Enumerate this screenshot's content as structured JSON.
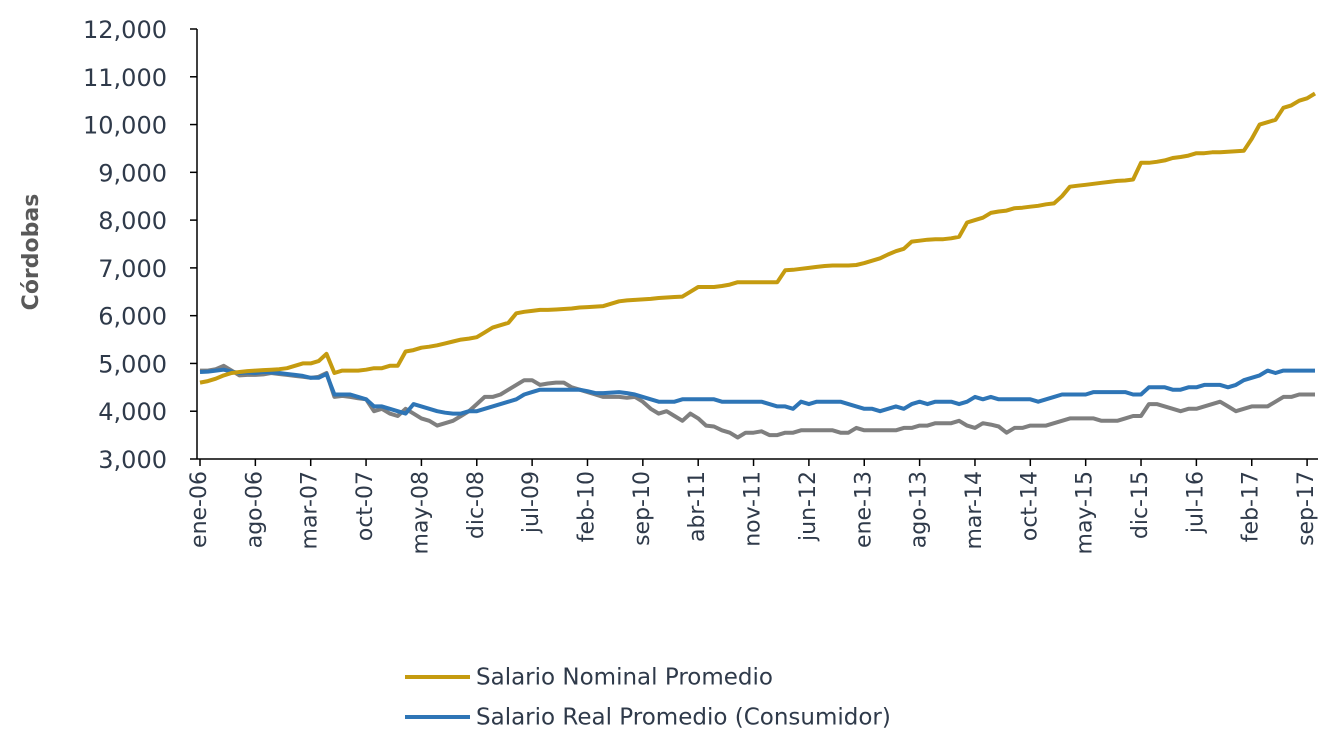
{
  "chart_data": {
    "type": "line",
    "y_label": "Córdobas",
    "categories": [
      "ene-06",
      null,
      null,
      null,
      null,
      null,
      null,
      "ago-06",
      null,
      null,
      null,
      null,
      null,
      null,
      "mar-07",
      null,
      null,
      null,
      null,
      null,
      null,
      "oct-07",
      null,
      null,
      null,
      null,
      null,
      null,
      "may-08",
      null,
      null,
      null,
      null,
      null,
      null,
      "dic-08",
      null,
      null,
      null,
      null,
      null,
      null,
      "jul-09",
      null,
      null,
      null,
      null,
      null,
      null,
      "feb-10",
      null,
      null,
      null,
      null,
      null,
      null,
      "sep-10",
      null,
      null,
      null,
      null,
      null,
      null,
      "abr-11",
      null,
      null,
      null,
      null,
      null,
      null,
      "nov-11",
      null,
      null,
      null,
      null,
      null,
      null,
      "jun-12",
      null,
      null,
      null,
      null,
      null,
      null,
      "ene-13",
      null,
      null,
      null,
      null,
      null,
      null,
      "ago-13",
      null,
      null,
      null,
      null,
      null,
      null,
      "mar-14",
      null,
      null,
      null,
      null,
      null,
      null,
      "oct-14",
      null,
      null,
      null,
      null,
      null,
      null,
      "may-15",
      null,
      null,
      null,
      null,
      null,
      null,
      "dic-15",
      null,
      null,
      null,
      null,
      null,
      null,
      "jul-16",
      null,
      null,
      null,
      null,
      null,
      null,
      "feb-17",
      null,
      null,
      null,
      null,
      null,
      null,
      "sep-17",
      null
    ],
    "series": [
      {
        "name": "Salario Nominal Promedio",
        "color": "#c59b10",
        "values": [
          4600,
          4630,
          4680,
          4750,
          4800,
          4820,
          4840,
          4850,
          4860,
          4870,
          4880,
          4900,
          4950,
          5000,
          5000,
          5050,
          5200,
          4800,
          4850,
          4850,
          4850,
          4870,
          4900,
          4900,
          4950,
          4950,
          5250,
          5280,
          5330,
          5350,
          5380,
          5420,
          5460,
          5500,
          5520,
          5550,
          5650,
          5750,
          5800,
          5850,
          6050,
          6080,
          6100,
          6120,
          6120,
          6130,
          6140,
          6150,
          6170,
          6180,
          6190,
          6200,
          6250,
          6300,
          6320,
          6330,
          6340,
          6350,
          6370,
          6380,
          6390,
          6400,
          6500,
          6600,
          6600,
          6600,
          6620,
          6650,
          6700,
          6700,
          6700,
          6700,
          6700,
          6700,
          6950,
          6960,
          6980,
          7000,
          7020,
          7040,
          7050,
          7050,
          7050,
          7060,
          7100,
          7150,
          7200,
          7280,
          7350,
          7400,
          7550,
          7570,
          7590,
          7600,
          7600,
          7620,
          7650,
          7950,
          8000,
          8050,
          8150,
          8180,
          8200,
          8250,
          8260,
          8280,
          8300,
          8330,
          8350,
          8500,
          8700,
          8720,
          8740,
          8760,
          8780,
          8800,
          8820,
          8830,
          8850,
          9200,
          9200,
          9220,
          9250,
          9300,
          9320,
          9350,
          9400,
          9400,
          9420,
          9420,
          9430,
          9440,
          9450,
          9700,
          10000,
          10050,
          10100,
          10350,
          10400,
          10500,
          10550,
          10650
        ]
      },
      {
        "name": "Salario Real Promedio (Consumidor)",
        "color": "#2e75b6",
        "values": [
          4820,
          4830,
          4850,
          4870,
          4830,
          4800,
          4810,
          4800,
          4820,
          4810,
          4800,
          4780,
          4760,
          4740,
          4700,
          4700,
          4780,
          4350,
          4350,
          4350,
          4300,
          4250,
          4100,
          4100,
          4050,
          4000,
          3950,
          4150,
          4100,
          4050,
          4000,
          3970,
          3950,
          3950,
          4000,
          4000,
          4050,
          4100,
          4150,
          4200,
          4250,
          4350,
          4400,
          4450,
          4450,
          4450,
          4450,
          4450,
          4450,
          4420,
          4380,
          4380,
          4390,
          4400,
          4380,
          4350,
          4300,
          4250,
          4200,
          4200,
          4200,
          4250,
          4250,
          4250,
          4250,
          4250,
          4200,
          4200,
          4200,
          4200,
          4200,
          4200,
          4150,
          4100,
          4100,
          4050,
          4200,
          4150,
          4200,
          4200,
          4200,
          4200,
          4150,
          4100,
          4050,
          4050,
          4000,
          4050,
          4100,
          4050,
          4150,
          4200,
          4150,
          4200,
          4200,
          4200,
          4150,
          4200,
          4300,
          4250,
          4300,
          4250,
          4250,
          4250,
          4250,
          4250,
          4200,
          4250,
          4300,
          4350,
          4350,
          4350,
          4350,
          4400,
          4400,
          4400,
          4400,
          4400,
          4350,
          4350,
          4500,
          4500,
          4500,
          4450,
          4450,
          4500,
          4500,
          4550,
          4550,
          4550,
          4500,
          4550,
          4650,
          4700,
          4750,
          4850,
          4800,
          4850,
          4850,
          4850,
          4850,
          4850
        ]
      },
      {
        "color": "#7f7f7f",
        "values": [
          4850,
          4850,
          4880,
          4950,
          4850,
          4750,
          4760,
          4760,
          4770,
          4800,
          4780,
          4760,
          4740,
          4720,
          4700,
          4720,
          4800,
          4300,
          4320,
          4300,
          4270,
          4250,
          4000,
          4050,
          3950,
          3900,
          4050,
          3950,
          3850,
          3800,
          3700,
          3750,
          3800,
          3900,
          4000,
          4150,
          4300,
          4300,
          4350,
          4450,
          4550,
          4650,
          4650,
          4550,
          4580,
          4600,
          4600,
          4500,
          4450,
          4400,
          4350,
          4300,
          4300,
          4300,
          4280,
          4300,
          4200,
          4050,
          3950,
          4000,
          3900,
          3800,
          3950,
          3850,
          3700,
          3680,
          3600,
          3550,
          3450,
          3550,
          3550,
          3580,
          3500,
          3500,
          3550,
          3550,
          3600,
          3600,
          3600,
          3600,
          3600,
          3550,
          3550,
          3650,
          3600,
          3600,
          3600,
          3600,
          3600,
          3650,
          3650,
          3700,
          3700,
          3750,
          3750,
          3750,
          3800,
          3700,
          3650,
          3750,
          3720,
          3680,
          3550,
          3650,
          3650,
          3700,
          3700,
          3700,
          3750,
          3800,
          3850,
          3850,
          3850,
          3850,
          3800,
          3800,
          3800,
          3850,
          3900,
          3900,
          4150,
          4150,
          4100,
          4050,
          4000,
          4050,
          4050,
          4100,
          4150,
          4200,
          4100,
          4000,
          4050,
          4100,
          4100,
          4100,
          4200,
          4300,
          4300,
          4350,
          4350,
          4350
        ]
      }
    ],
    "ylim": [
      3000,
      12000
    ],
    "yticks": [
      {
        "value": 3000,
        "label": "3,000"
      },
      {
        "value": 4000,
        "label": "4,000"
      },
      {
        "value": 5000,
        "label": "5,000"
      },
      {
        "value": 6000,
        "label": "6,000"
      },
      {
        "value": 7000,
        "label": "7,000"
      },
      {
        "value": 8000,
        "label": "8,000"
      },
      {
        "value": 9000,
        "label": "9,000"
      },
      {
        "value": 10000,
        "label": "10,000"
      },
      {
        "value": 11000,
        "label": "11,000"
      },
      {
        "value": 12000,
        "label": "12,000"
      }
    ]
  }
}
